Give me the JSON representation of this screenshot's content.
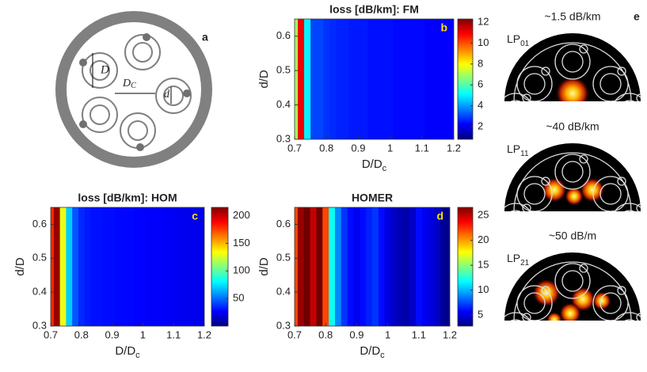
{
  "chart_data": [
    {
      "type": "heatmap",
      "title": "loss [dB/km]: FM",
      "panel_label": "b",
      "xlabel": "D/D",
      "xlabel_sub": "c",
      "ylabel": "d/D",
      "x": [
        0.7,
        0.72,
        0.74,
        0.76,
        0.78,
        0.8,
        0.82,
        0.84,
        0.86,
        0.88,
        0.9,
        0.92,
        0.94,
        0.96,
        0.98,
        1.0,
        1.02,
        1.04,
        1.06,
        1.08,
        1.1,
        1.12,
        1.14,
        1.16,
        1.18,
        1.2
      ],
      "values": [
        7,
        11,
        5,
        3,
        3,
        2.8,
        2.7,
        2.6,
        2.6,
        2.5,
        2.5,
        2.5,
        2.4,
        2.4,
        2.4,
        2.4,
        2.3,
        2.3,
        2.3,
        2.3,
        2.3,
        2.2,
        2.2,
        2.2,
        2.2,
        2.2
      ],
      "xlim": [
        0.7,
        1.2
      ],
      "ylim": [
        0.3,
        0.65
      ],
      "xticks": [
        0.7,
        0.8,
        0.9,
        1,
        1.1,
        1.2
      ],
      "yticks": [
        0.3,
        0.4,
        0.5,
        0.6
      ],
      "clim": [
        0.8,
        12.3
      ],
      "cticks": [
        2,
        4,
        6,
        8,
        10,
        12
      ]
    },
    {
      "type": "heatmap",
      "title": "loss [dB/km]: HOM",
      "panel_label": "c",
      "xlabel": "D/D",
      "xlabel_sub": "c",
      "ylabel": "d/D",
      "x": [
        0.7,
        0.72,
        0.74,
        0.76,
        0.78,
        0.8,
        0.82,
        0.84,
        0.86,
        0.88,
        0.9,
        0.92,
        0.94,
        0.96,
        0.98,
        1.0,
        1.02,
        1.04,
        1.06,
        1.08,
        1.1,
        1.12,
        1.14,
        1.16,
        1.18,
        1.2
      ],
      "values": [
        180,
        210,
        130,
        70,
        45,
        35,
        32,
        30,
        30,
        29,
        29,
        28,
        28,
        28,
        27,
        27,
        26,
        26,
        26,
        25,
        25,
        24,
        24,
        23,
        23,
        22
      ],
      "xlim": [
        0.7,
        1.2
      ],
      "ylim": [
        0.3,
        0.65
      ],
      "xticks": [
        0.7,
        0.8,
        0.9,
        1,
        1.1,
        1.2
      ],
      "yticks": [
        0.3,
        0.4,
        0.5,
        0.6
      ],
      "clim": [
        0,
        215
      ],
      "cticks": [
        50,
        100,
        150,
        200
      ]
    },
    {
      "type": "heatmap",
      "title": "HOMER",
      "panel_label": "d",
      "xlabel": "D/D",
      "xlabel_sub": "c",
      "ylabel": "d/D",
      "x": [
        0.7,
        0.72,
        0.74,
        0.76,
        0.78,
        0.8,
        0.82,
        0.84,
        0.86,
        0.88,
        0.9,
        0.92,
        0.94,
        0.96,
        0.98,
        1.0,
        1.02,
        1.04,
        1.06,
        1.08,
        1.1,
        1.12,
        1.14,
        1.16,
        1.18,
        1.2
      ],
      "values": [
        22,
        26,
        27,
        25,
        27,
        22,
        12,
        9,
        7,
        6,
        5.5,
        6,
        6.5,
        7,
        6,
        5,
        4.5,
        4,
        3.8,
        4.5,
        6,
        5.5,
        5,
        4.5,
        3.2,
        3
      ],
      "xlim": [
        0.7,
        1.2
      ],
      "ylim": [
        0.3,
        0.65
      ],
      "xticks": [
        0.7,
        0.8,
        0.9,
        1,
        1.1,
        1.2
      ],
      "yticks": [
        0.3,
        0.4,
        0.5,
        0.6
      ],
      "clim": [
        2.8,
        26.6
      ],
      "cticks": [
        5,
        10,
        15,
        20,
        25
      ]
    }
  ],
  "diagram": {
    "panel_label": "a",
    "big_d": "D",
    "dc_main": "D",
    "dc_sub": "C",
    "small_d": "d"
  },
  "modes": {
    "panel_label": "e",
    "items": [
      {
        "loss": "~1.5 dB/km",
        "name": "LP",
        "sub": "01"
      },
      {
        "loss": "~40 dB/km",
        "name": "LP",
        "sub": "11"
      },
      {
        "loss": "~50 dB/m",
        "name": "LP",
        "sub": "21"
      }
    ]
  }
}
